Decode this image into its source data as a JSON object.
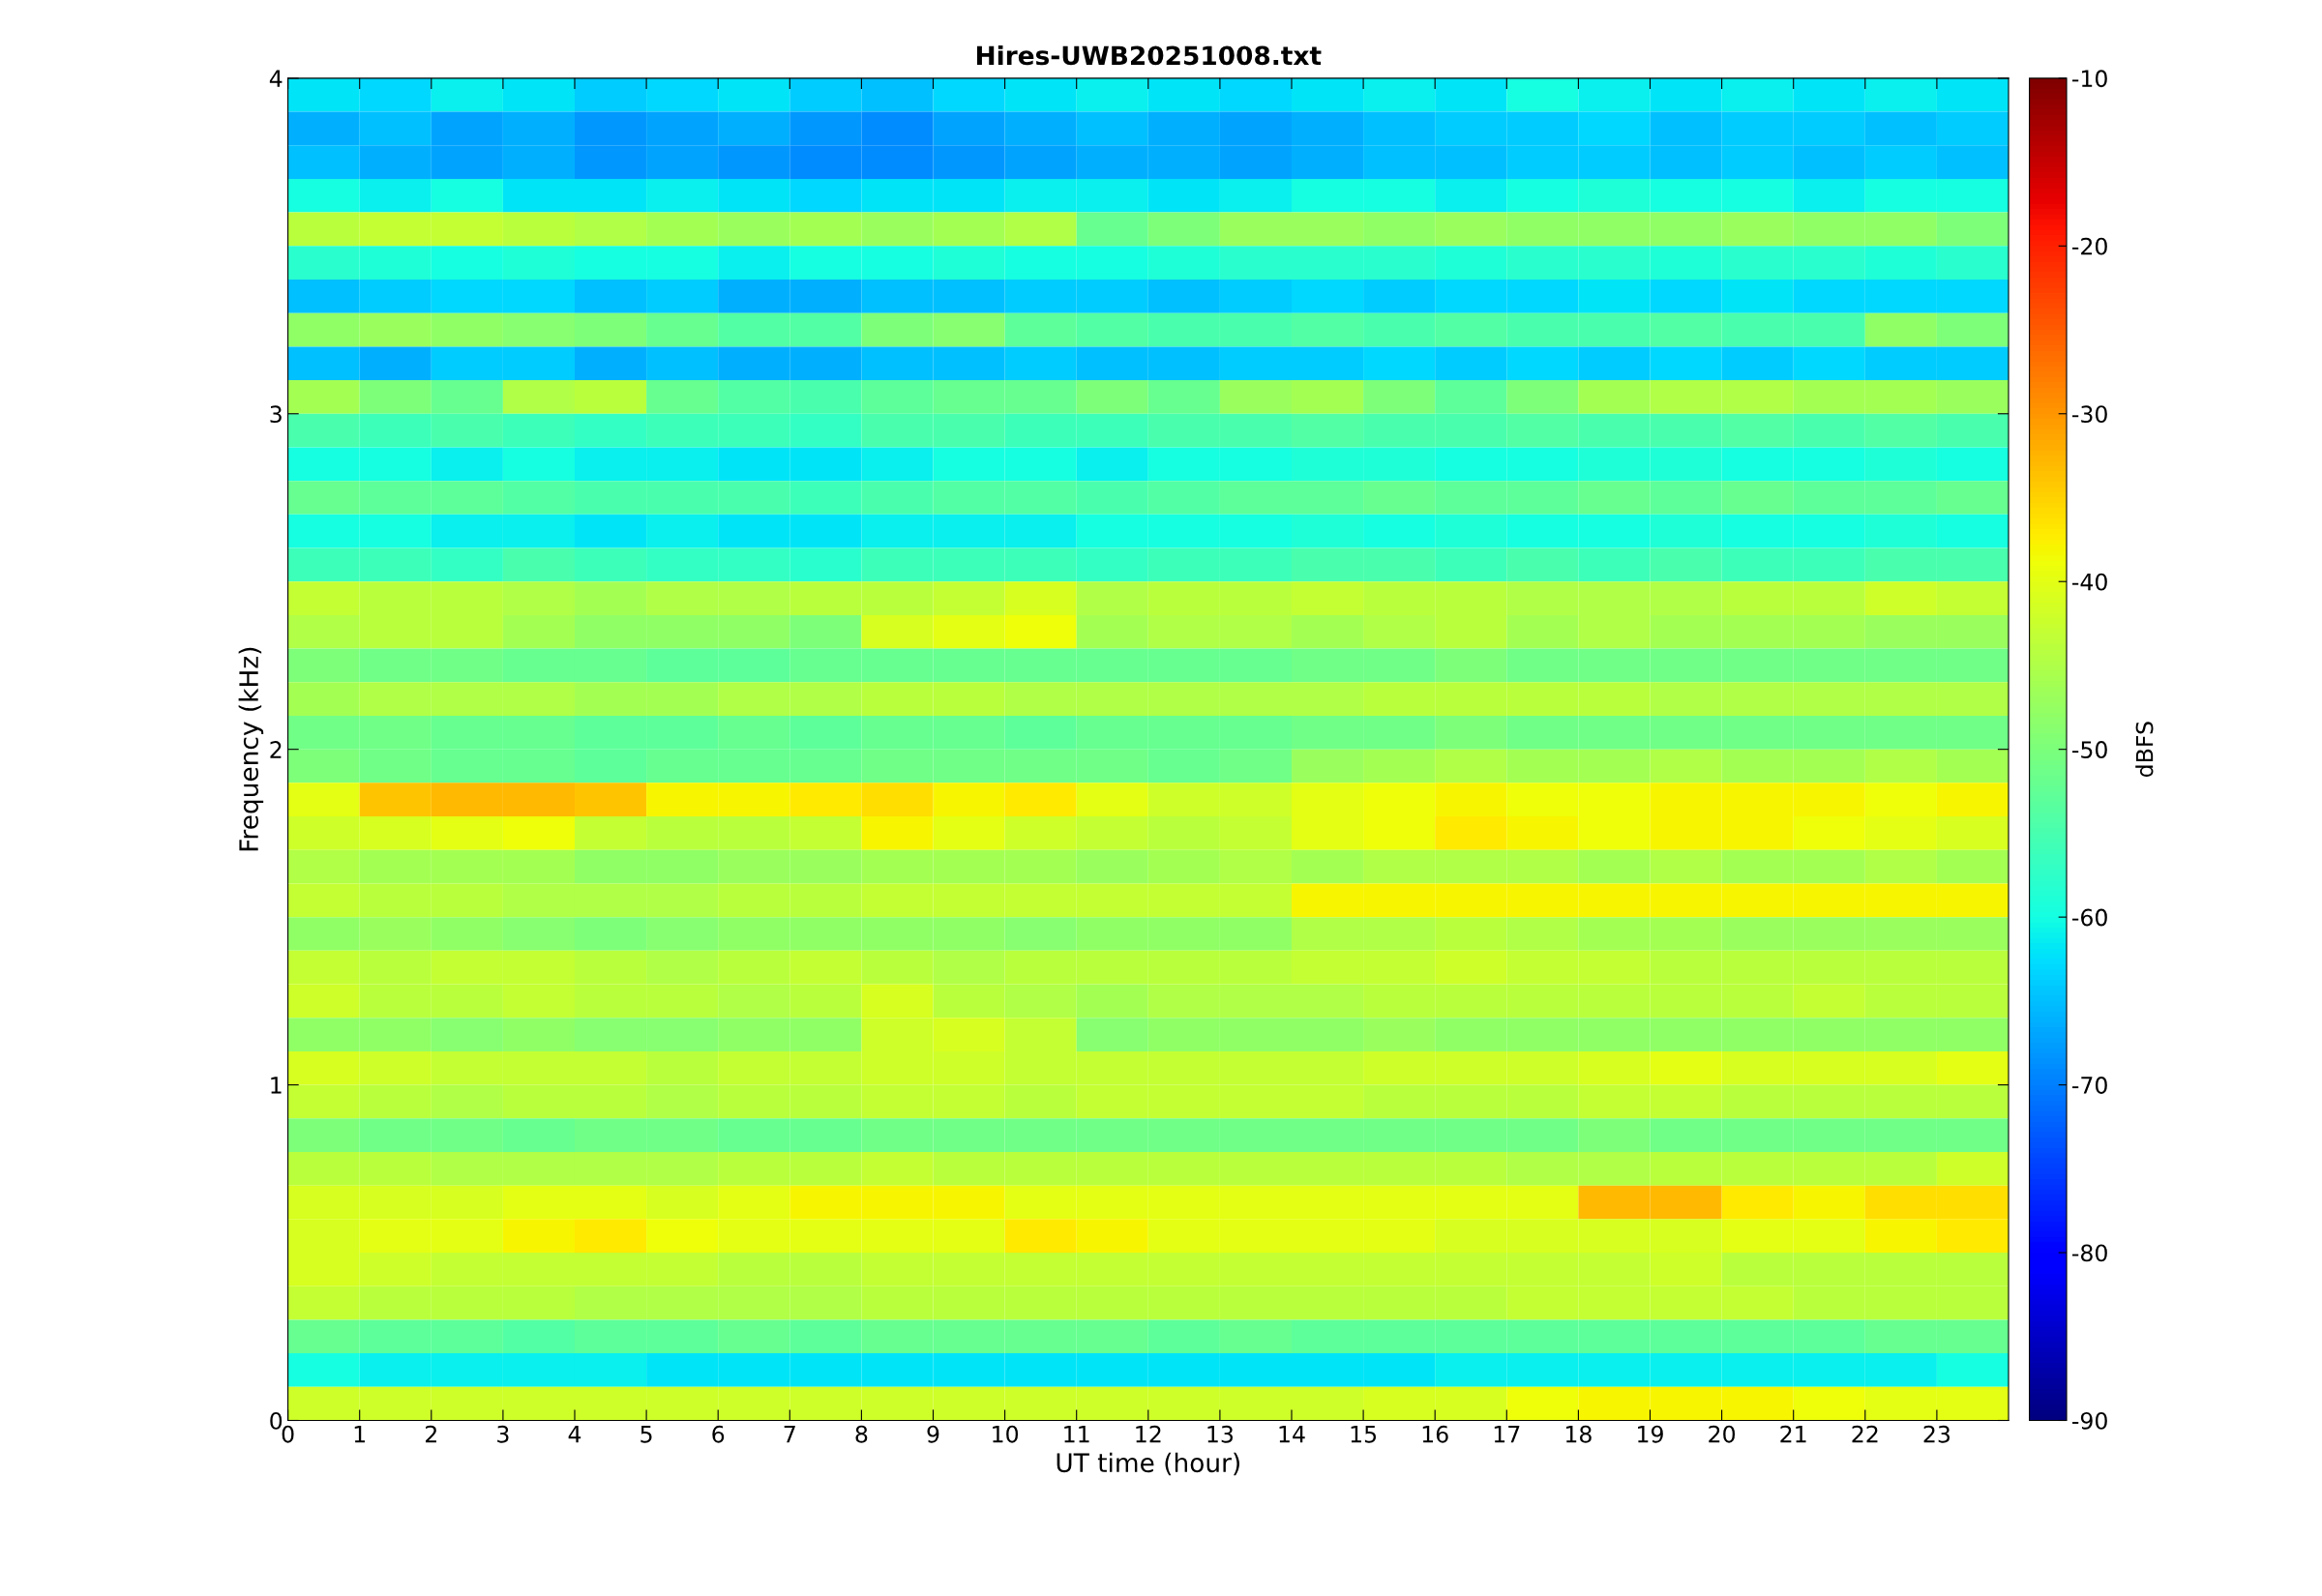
{
  "chart_data": {
    "type": "heatmap",
    "title": "Hires-UWB20251008.txt",
    "xlabel": "UT time (hour)",
    "ylabel": "Frequency (kHz)",
    "clabel": "dBFS",
    "xlim": [
      0,
      24
    ],
    "xticks": [
      0,
      1,
      2,
      3,
      4,
      5,
      6,
      7,
      8,
      9,
      10,
      11,
      12,
      13,
      14,
      15,
      16,
      17,
      18,
      19,
      20,
      21,
      22,
      23
    ],
    "ylim": [
      0,
      4
    ],
    "yticks": [
      0,
      1,
      2,
      3,
      4
    ],
    "clim": [
      -90,
      -10
    ],
    "cticks": [
      -90,
      -80,
      -70,
      -60,
      -50,
      -40,
      -30,
      -20,
      -10
    ],
    "grid": false,
    "cells": [
      [
        -62,
        -63,
        -61,
        -62,
        -64,
        -63,
        -62,
        -64,
        -65,
        -63,
        -62,
        -61,
        -62,
        -63,
        -62,
        -61,
        -62,
        -60,
        -61,
        -62,
        -61,
        -62,
        -61,
        -62
      ],
      [
        -66,
        -65,
        -67,
        -66,
        -68,
        -67,
        -66,
        -68,
        -69,
        -67,
        -66,
        -65,
        -66,
        -67,
        -66,
        -65,
        -64,
        -64,
        -63,
        -65,
        -64,
        -64,
        -65,
        -64
      ],
      [
        -65,
        -66,
        -67,
        -66,
        -68,
        -67,
        -68,
        -69,
        -69,
        -68,
        -67,
        -66,
        -66,
        -67,
        -66,
        -65,
        -65,
        -64,
        -64,
        -65,
        -64,
        -65,
        -64,
        -65
      ],
      [
        -60,
        -61,
        -60,
        -62,
        -62,
        -61,
        -62,
        -63,
        -62,
        -62,
        -61,
        -61,
        -62,
        -61,
        -60,
        -60,
        -61,
        -60,
        -59,
        -60,
        -60,
        -61,
        -60,
        -60
      ],
      [
        -44,
        -43,
        -43,
        -44,
        -45,
        -46,
        -47,
        -46,
        -47,
        -46,
        -45,
        -52,
        -50,
        -47,
        -47,
        -48,
        -47,
        -48,
        -48,
        -48,
        -47,
        -48,
        -48,
        -50
      ],
      [
        -58,
        -59,
        -60,
        -59,
        -60,
        -60,
        -61,
        -60,
        -60,
        -59,
        -60,
        -60,
        -59,
        -58,
        -58,
        -58,
        -59,
        -58,
        -58,
        -59,
        -58,
        -58,
        -59,
        -58
      ],
      [
        -65,
        -64,
        -63,
        -63,
        -65,
        -64,
        -66,
        -66,
        -65,
        -65,
        -64,
        -64,
        -65,
        -64,
        -63,
        -64,
        -63,
        -63,
        -62,
        -63,
        -62,
        -63,
        -63,
        -63
      ],
      [
        -48,
        -47,
        -48,
        -49,
        -50,
        -52,
        -54,
        -54,
        -50,
        -49,
        -53,
        -54,
        -55,
        -55,
        -54,
        -55,
        -54,
        -55,
        -55,
        -54,
        -55,
        -55,
        -48,
        -50
      ],
      [
        -65,
        -66,
        -64,
        -64,
        -66,
        -65,
        -66,
        -66,
        -65,
        -65,
        -64,
        -65,
        -65,
        -64,
        -64,
        -63,
        -64,
        -63,
        -64,
        -63,
        -64,
        -63,
        -64,
        -64
      ],
      [
        -46,
        -50,
        -52,
        -45,
        -44,
        -52,
        -54,
        -55,
        -53,
        -52,
        -52,
        -50,
        -52,
        -47,
        -46,
        -50,
        -53,
        -50,
        -46,
        -45,
        -45,
        -46,
        -46,
        -47
      ],
      [
        -55,
        -56,
        -55,
        -56,
        -57,
        -56,
        -56,
        -57,
        -55,
        -55,
        -56,
        -56,
        -55,
        -55,
        -54,
        -55,
        -55,
        -54,
        -55,
        -55,
        -54,
        -55,
        -54,
        -55
      ],
      [
        -60,
        -60,
        -61,
        -60,
        -61,
        -61,
        -62,
        -62,
        -61,
        -60,
        -60,
        -61,
        -60,
        -60,
        -59,
        -59,
        -60,
        -60,
        -59,
        -59,
        -60,
        -60,
        -59,
        -60
      ],
      [
        -52,
        -53,
        -53,
        -54,
        -55,
        -55,
        -55,
        -56,
        -55,
        -54,
        -54,
        -55,
        -54,
        -53,
        -53,
        -52,
        -53,
        -53,
        -52,
        -53,
        -52,
        -53,
        -53,
        -52
      ],
      [
        -60,
        -60,
        -61,
        -61,
        -62,
        -61,
        -62,
        -62,
        -61,
        -61,
        -61,
        -60,
        -60,
        -60,
        -59,
        -60,
        -59,
        -60,
        -60,
        -59,
        -60,
        -60,
        -59,
        -60
      ],
      [
        -56,
        -56,
        -57,
        -55,
        -56,
        -57,
        -57,
        -58,
        -56,
        -56,
        -56,
        -57,
        -56,
        -56,
        -55,
        -55,
        -56,
        -55,
        -56,
        -55,
        -56,
        -56,
        -55,
        -55
      ],
      [
        -43,
        -44,
        -44,
        -45,
        -46,
        -45,
        -45,
        -44,
        -44,
        -43,
        -41,
        -45,
        -44,
        -44,
        -43,
        -44,
        -44,
        -45,
        -45,
        -45,
        -44,
        -44,
        -42,
        -43
      ],
      [
        -45,
        -44,
        -44,
        -46,
        -48,
        -48,
        -48,
        -50,
        -41,
        -40,
        -39,
        -46,
        -45,
        -45,
        -46,
        -45,
        -44,
        -46,
        -45,
        -46,
        -46,
        -46,
        -47,
        -47
      ],
      [
        -50,
        -51,
        -51,
        -52,
        -52,
        -53,
        -53,
        -52,
        -52,
        -52,
        -52,
        -52,
        -52,
        -52,
        -51,
        -51,
        -50,
        -51,
        -51,
        -51,
        -51,
        -51,
        -51,
        -51
      ],
      [
        -46,
        -45,
        -45,
        -45,
        -46,
        -46,
        -45,
        -45,
        -44,
        -44,
        -45,
        -45,
        -45,
        -45,
        -45,
        -44,
        -44,
        -44,
        -44,
        -45,
        -45,
        -45,
        -45,
        -45
      ],
      [
        -51,
        -51,
        -52,
        -52,
        -53,
        -53,
        -52,
        -53,
        -52,
        -52,
        -53,
        -52,
        -52,
        -52,
        -51,
        -51,
        -50,
        -51,
        -51,
        -51,
        -51,
        -51,
        -51,
        -51
      ],
      [
        -50,
        -51,
        -52,
        -52,
        -53,
        -52,
        -52,
        -52,
        -51,
        -51,
        -51,
        -51,
        -52,
        -51,
        -47,
        -46,
        -45,
        -46,
        -46,
        -45,
        -46,
        -46,
        -45,
        -46
      ],
      [
        -40,
        -34,
        -33,
        -33,
        -34,
        -38,
        -38,
        -37,
        -36,
        -38,
        -37,
        -40,
        -42,
        -42,
        -40,
        -39,
        -38,
        -39,
        -39,
        -38,
        -38,
        -38,
        -39,
        -38
      ],
      [
        -42,
        -41,
        -40,
        -39,
        -43,
        -44,
        -44,
        -43,
        -38,
        -40,
        -42,
        -43,
        -44,
        -43,
        -40,
        -39,
        -37,
        -38,
        -39,
        -38,
        -38,
        -39,
        -40,
        -41
      ],
      [
        -45,
        -46,
        -46,
        -46,
        -48,
        -48,
        -47,
        -47,
        -46,
        -46,
        -46,
        -47,
        -46,
        -45,
        -46,
        -45,
        -45,
        -45,
        -46,
        -45,
        -46,
        -46,
        -45,
        -46
      ],
      [
        -43,
        -44,
        -44,
        -45,
        -45,
        -45,
        -44,
        -44,
        -43,
        -43,
        -43,
        -43,
        -43,
        -43,
        -38,
        -38,
        -38,
        -38,
        -38,
        -38,
        -38,
        -38,
        -38,
        -38
      ],
      [
        -48,
        -47,
        -48,
        -49,
        -50,
        -49,
        -48,
        -48,
        -48,
        -48,
        -49,
        -48,
        -48,
        -48,
        -45,
        -45,
        -44,
        -45,
        -46,
        -46,
        -47,
        -47,
        -47,
        -47
      ],
      [
        -43,
        -44,
        -43,
        -43,
        -44,
        -45,
        -44,
        -43,
        -44,
        -45,
        -44,
        -44,
        -44,
        -44,
        -43,
        -43,
        -42,
        -43,
        -43,
        -44,
        -44,
        -44,
        -44,
        -44
      ],
      [
        -42,
        -44,
        -44,
        -43,
        -44,
        -44,
        -45,
        -44,
        -41,
        -44,
        -45,
        -46,
        -45,
        -45,
        -45,
        -44,
        -44,
        -44,
        -44,
        -44,
        -44,
        -43,
        -44,
        -44
      ],
      [
        -48,
        -48,
        -49,
        -48,
        -49,
        -49,
        -48,
        -48,
        -42,
        -41,
        -43,
        -49,
        -48,
        -48,
        -48,
        -47,
        -48,
        -48,
        -48,
        -48,
        -48,
        -48,
        -48,
        -48
      ],
      [
        -41,
        -42,
        -43,
        -43,
        -43,
        -44,
        -43,
        -43,
        -42,
        -42,
        -43,
        -43,
        -43,
        -43,
        -43,
        -42,
        -42,
        -42,
        -41,
        -40,
        -41,
        -41,
        -41,
        -40
      ],
      [
        -43,
        -44,
        -45,
        -44,
        -44,
        -45,
        -44,
        -44,
        -43,
        -43,
        -44,
        -43,
        -43,
        -43,
        -43,
        -44,
        -44,
        -44,
        -43,
        -43,
        -44,
        -44,
        -44,
        -44
      ],
      [
        -50,
        -51,
        -51,
        -52,
        -51,
        -51,
        -52,
        -52,
        -51,
        -51,
        -51,
        -51,
        -51,
        -51,
        -51,
        -51,
        -51,
        -51,
        -50,
        -51,
        -51,
        -51,
        -51,
        -51
      ],
      [
        -44,
        -44,
        -45,
        -45,
        -45,
        -45,
        -44,
        -44,
        -43,
        -44,
        -44,
        -44,
        -44,
        -44,
        -44,
        -44,
        -44,
        -45,
        -45,
        -44,
        -44,
        -44,
        -44,
        -42
      ],
      [
        -41,
        -41,
        -41,
        -40,
        -40,
        -41,
        -40,
        -38,
        -38,
        -38,
        -40,
        -40,
        -40,
        -40,
        -40,
        -40,
        -40,
        -40,
        -33,
        -33,
        -37,
        -38,
        -36,
        -36
      ],
      [
        -41,
        -40,
        -40,
        -38,
        -37,
        -39,
        -40,
        -40,
        -40,
        -40,
        -37,
        -38,
        -40,
        -40,
        -40,
        -40,
        -41,
        -41,
        -41,
        -41,
        -40,
        -40,
        -38,
        -37
      ],
      [
        -41,
        -42,
        -43,
        -43,
        -43,
        -43,
        -44,
        -44,
        -43,
        -43,
        -43,
        -43,
        -43,
        -43,
        -43,
        -43,
        -43,
        -43,
        -43,
        -42,
        -44,
        -44,
        -44,
        -44
      ],
      [
        -43,
        -44,
        -44,
        -44,
        -45,
        -45,
        -45,
        -45,
        -44,
        -44,
        -44,
        -44,
        -44,
        -44,
        -44,
        -44,
        -44,
        -43,
        -43,
        -43,
        -43,
        -44,
        -44,
        -44
      ],
      [
        -52,
        -53,
        -53,
        -54,
        -53,
        -53,
        -52,
        -53,
        -52,
        -52,
        -52,
        -52,
        -53,
        -52,
        -53,
        -53,
        -53,
        -53,
        -53,
        -53,
        -53,
        -53,
        -52,
        -52
      ],
      [
        -60,
        -61,
        -61,
        -61,
        -61,
        -62,
        -62,
        -62,
        -62,
        -62,
        -62,
        -62,
        -62,
        -62,
        -62,
        -62,
        -61,
        -61,
        -61,
        -61,
        -61,
        -61,
        -61,
        -60
      ],
      [
        -42,
        -42,
        -42,
        -42,
        -42,
        -42,
        -42,
        -42,
        -42,
        -42,
        -42,
        -42,
        -42,
        -42,
        -42,
        -41,
        -41,
        -39,
        -38,
        -38,
        -38,
        -39,
        -40,
        -40
      ]
    ]
  }
}
